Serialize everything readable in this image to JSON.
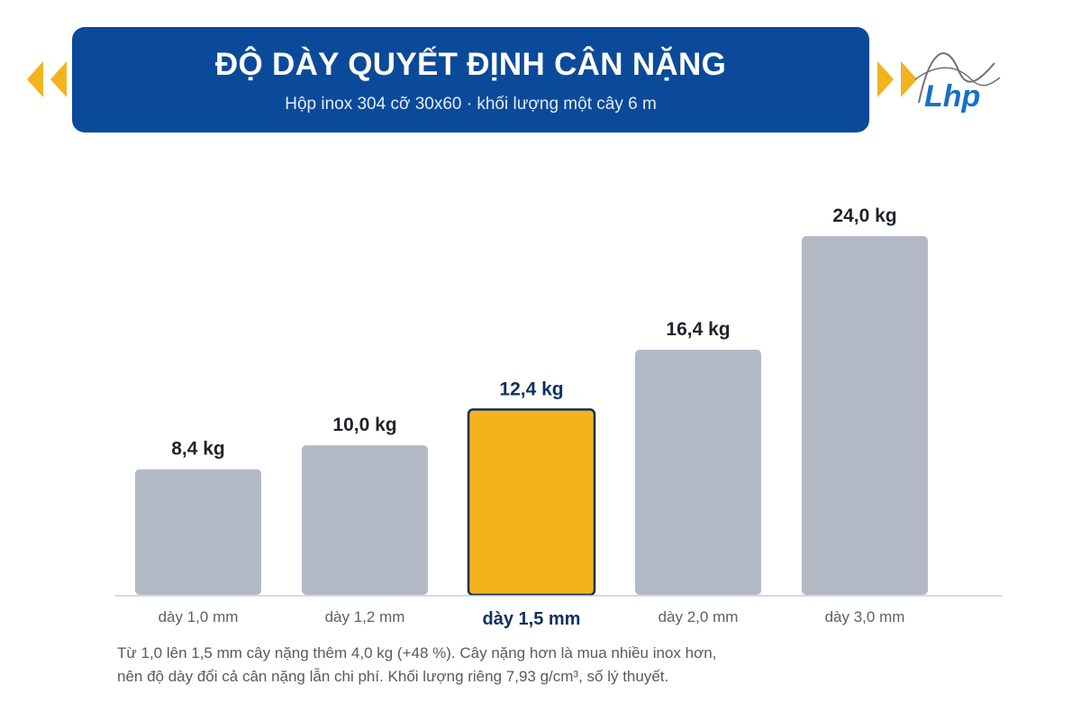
{
  "header": {
    "title": "ĐỘ DÀY QUYẾT ĐỊNH CÂN NẶNG",
    "subtitle": "Hộp inox 304 cỡ 30x60 · khối lượng một cây 6 m"
  },
  "logo": {
    "icon": "lhp-logo-icon",
    "text": "Lhp"
  },
  "colors": {
    "banner": "#0b4a9a",
    "bar": "#b3bac6",
    "highlight": "#f2b31c",
    "highlight_border": "#10305e",
    "label_dark": "#1f2328",
    "label_highlight": "#10305e",
    "arrow": "#f2b31c"
  },
  "chart_data": {
    "type": "bar",
    "categories": [
      "dày 1,0 mm",
      "dày 1,2 mm",
      "dày 1,5 mm",
      "dày 2,0 mm",
      "dày 3,0 mm"
    ],
    "values": [
      8.4,
      10.0,
      12.4,
      16.4,
      24.0
    ],
    "data_labels": [
      "8,4 kg",
      "10,0 kg",
      "12,4 kg",
      "16,4 kg",
      "24,0 kg"
    ],
    "highlight_index": 2,
    "unit": "kg",
    "ylim": [
      0,
      24
    ],
    "grid": false,
    "title": "",
    "xlabel": "",
    "ylabel": ""
  },
  "footnote": {
    "line1": "Từ 1,0 lên 1,5 mm cây nặng thêm 4,0 kg (+48 %). Cây nặng hơn là mua nhiều inox hơn,",
    "line2": "nên độ dày đổi cả cân nặng lẫn chi phí. Khối lượng riêng 7,93 g/cm³, số lý thuyết."
  }
}
